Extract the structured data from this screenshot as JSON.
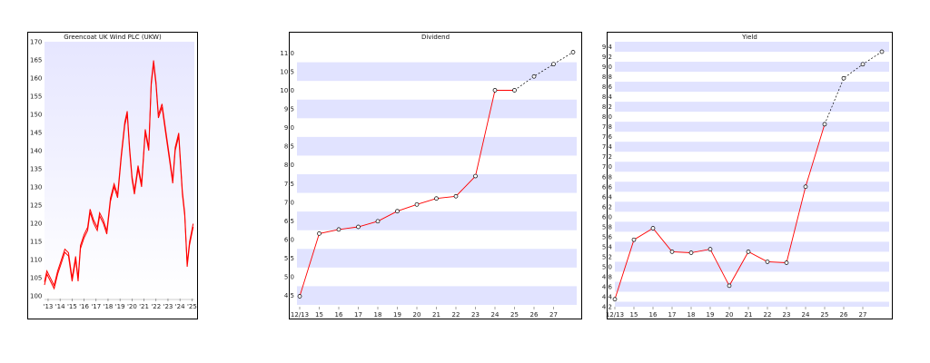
{
  "colors": {
    "line": "#ff0000",
    "band": "#e1e3ff",
    "gradient_top": "#e6e6ff",
    "gradient_bottom": "#ffffff",
    "forecast": "#000000"
  },
  "chart_data": [
    {
      "id": "price",
      "type": "line",
      "title": "Greencoat UK Wind PLC (UKW)",
      "ylim": [
        100,
        170
      ],
      "yticks": [
        100,
        105,
        110,
        115,
        120,
        125,
        130,
        135,
        140,
        145,
        150,
        155,
        160,
        165,
        170
      ],
      "xlim": [
        2013.2,
        2025.7
      ],
      "xticks": [
        "'13",
        "'14",
        "'15",
        "'16",
        "'17",
        "'18",
        "'19",
        "'20",
        "'21",
        "'22",
        "'23",
        "'24",
        "'25"
      ],
      "xtick_years": [
        2013.5,
        2014.5,
        2015.5,
        2016.5,
        2017.5,
        2018.5,
        2019.5,
        2020.5,
        2021.5,
        2022.5,
        2023.5,
        2024.5,
        2025.5
      ],
      "series": [
        {
          "x": [
            2013.2,
            2013.4,
            2013.7,
            2014.0,
            2014.3,
            2014.6,
            2014.9,
            2015.2,
            2015.5,
            2015.8,
            2016.0,
            2016.2,
            2016.5,
            2016.8,
            2017.0,
            2017.3,
            2017.6,
            2017.8,
            2018.1,
            2018.4,
            2018.7,
            2019.0,
            2019.3,
            2019.6,
            2019.9,
            2020.1,
            2020.3,
            2020.5,
            2020.7,
            2021.0,
            2021.3,
            2021.6,
            2021.9,
            2022.1,
            2022.3,
            2022.5,
            2022.7,
            2023.0,
            2023.3,
            2023.6,
            2023.9,
            2024.1,
            2024.4,
            2024.7,
            2024.9,
            2025.1,
            2025.3,
            2025.6
          ],
          "y": [
            103,
            106,
            104,
            102,
            106,
            109,
            112,
            111,
            104,
            110,
            104,
            113,
            116,
            118,
            123,
            120,
            118,
            122,
            120,
            117,
            126,
            130,
            127,
            138,
            147,
            150,
            140,
            132,
            128,
            135,
            130,
            145,
            140,
            158,
            164,
            158,
            149,
            152,
            145,
            138,
            131,
            140,
            144,
            128,
            122,
            108,
            114,
            119
          ]
        }
      ]
    },
    {
      "id": "dividend",
      "type": "line",
      "title": "Dividend",
      "ylim": [
        4.2,
        11.3
      ],
      "yticks": [
        "4.5",
        "5.0",
        "5.5",
        "6.0",
        "6.5",
        "7.0",
        "7.5",
        "8.0",
        "8.5",
        "9.0",
        "9.5",
        "10.0",
        "10.5",
        "11.0"
      ],
      "xticks": [
        "12/13",
        "15",
        "16",
        "17",
        "18",
        "19",
        "20",
        "21",
        "22",
        "23",
        "24",
        "25",
        "26",
        "27"
      ],
      "actual": [
        4.48,
        6.16,
        6.27,
        6.34,
        6.49,
        6.76,
        6.94,
        7.1,
        7.16,
        7.7,
        10.0,
        10.0
      ],
      "forecast": [
        10.0,
        10.37,
        10.7,
        11.02
      ]
    },
    {
      "id": "yield",
      "type": "line",
      "title": "Yield",
      "ylim": [
        4.2,
        9.5
      ],
      "yticks": [
        "4.2",
        "4.4",
        "4.6",
        "4.8",
        "5.0",
        "5.2",
        "5.4",
        "5.6",
        "5.8",
        "6.0",
        "6.2",
        "6.4",
        "6.6",
        "6.8",
        "7.0",
        "7.2",
        "7.4",
        "7.6",
        "7.8",
        "8.0",
        "8.2",
        "8.4",
        "8.6",
        "8.8",
        "9.0",
        "9.2",
        "9.4"
      ],
      "xticks": [
        "12/13",
        "15",
        "16",
        "17",
        "18",
        "19",
        "20",
        "21",
        "22",
        "23",
        "24",
        "25",
        "26",
        "27"
      ],
      "actual": [
        4.35,
        5.54,
        5.77,
        5.3,
        5.28,
        5.35,
        4.62,
        5.3,
        5.1,
        5.08,
        6.6,
        7.85
      ],
      "forecast": [
        7.85,
        8.77,
        9.05,
        9.3
      ]
    }
  ]
}
